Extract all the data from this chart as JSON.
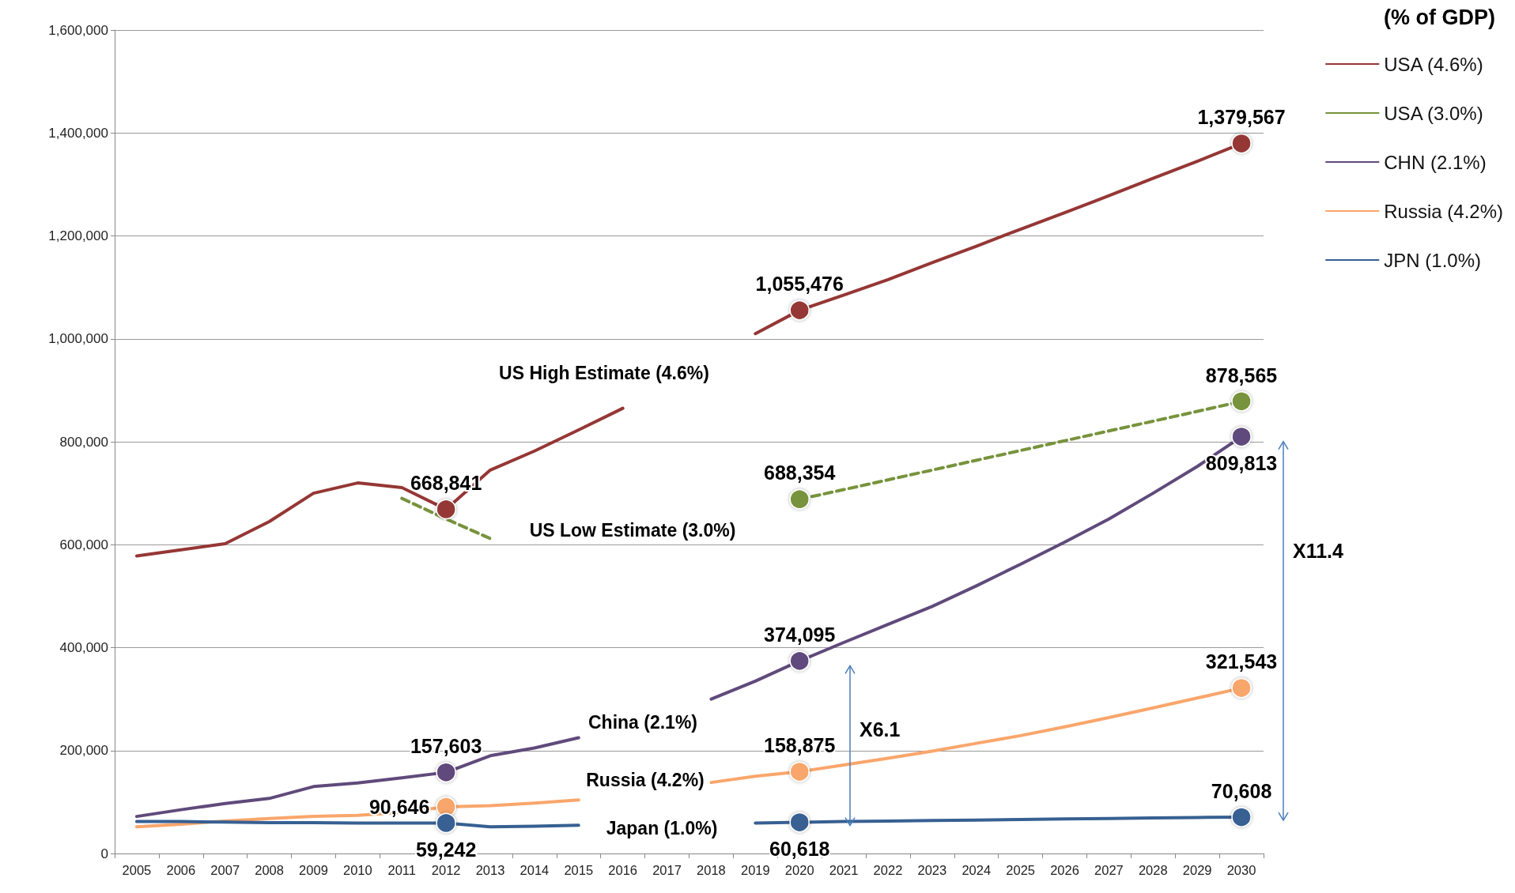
{
  "chart_data": {
    "type": "line",
    "legend_title": "(% of GDP)",
    "legend": "top right",
    "grid": "y",
    "line_style": "solid",
    "categories": [
      "2005",
      "2006",
      "2007",
      "2008",
      "2009",
      "2010",
      "2011",
      "2012",
      "2013",
      "2014",
      "2015",
      "2016",
      "2017",
      "2018",
      "2019",
      "2020",
      "2021",
      "2022",
      "2023",
      "2024",
      "2025",
      "2026",
      "2027",
      "2028",
      "2029",
      "2030"
    ],
    "ylim": [
      0,
      1600000
    ],
    "yticks": [
      {
        "value": 0,
        "label": "0"
      },
      {
        "value": 200000,
        "label": "200,000"
      },
      {
        "value": 400000,
        "label": "400,000"
      },
      {
        "value": 600000,
        "label": "600,000"
      },
      {
        "value": 800000,
        "label": "800,000"
      },
      {
        "value": 1000000,
        "label": "1,000,000"
      },
      {
        "value": 1200000,
        "label": "1,200,000"
      },
      {
        "value": 1400000,
        "label": "1,400,000"
      },
      {
        "value": 1600000,
        "label": "1,600,000"
      }
    ],
    "series": [
      {
        "name": "USA (4.6%)",
        "color": "#953735",
        "values": [
          578000,
          590000,
          602000,
          645000,
          700000,
          720000,
          711000,
          668841,
          745000,
          782000,
          823000,
          865000,
          null,
          null,
          1010000,
          1055476,
          1085000,
          1115000,
          1148000,
          1180000,
          1213000,
          1245000,
          1278000,
          1312000,
          1345000,
          1379567
        ],
        "value_labels": [
          null,
          null,
          null,
          null,
          null,
          null,
          null,
          "668,841",
          null,
          null,
          null,
          null,
          null,
          null,
          null,
          "1,055,476",
          null,
          null,
          null,
          null,
          null,
          null,
          null,
          null,
          null,
          "1,379,567"
        ]
      },
      {
        "name": "USA (3.0%)",
        "color": "#77933c",
        "line_style": "dashed",
        "values": [
          null,
          null,
          null,
          null,
          null,
          null,
          690000,
          650000,
          612000,
          null,
          null,
          null,
          null,
          null,
          null,
          688354,
          707000,
          726000,
          745000,
          764000,
          783000,
          802000,
          821000,
          840000,
          859000,
          878565
        ],
        "value_labels": [
          null,
          null,
          null,
          null,
          null,
          null,
          null,
          null,
          null,
          null,
          null,
          null,
          null,
          null,
          null,
          "688,354",
          null,
          null,
          null,
          null,
          null,
          null,
          null,
          null,
          null,
          "878,565"
        ]
      },
      {
        "name": "CHN (2.1%)",
        "color": "#604a7b",
        "values": [
          72000,
          85000,
          97000,
          107000,
          130000,
          137000,
          147000,
          157603,
          190000,
          205000,
          225000,
          null,
          null,
          300000,
          335000,
          374095,
          410000,
          445000,
          480000,
          520000,
          562000,
          605000,
          650000,
          700000,
          752000,
          809813
        ],
        "value_labels": [
          null,
          null,
          null,
          null,
          null,
          null,
          null,
          "157,603",
          null,
          null,
          null,
          null,
          null,
          null,
          null,
          "374,095",
          null,
          null,
          null,
          null,
          null,
          null,
          null,
          null,
          null,
          "809,813"
        ]
      },
      {
        "name": "Russia (4.2%)",
        "color": "#f9a66c",
        "values": [
          52000,
          57000,
          63000,
          68000,
          72000,
          74000,
          80000,
          90646,
          93000,
          98000,
          104000,
          null,
          null,
          138000,
          150000,
          158875,
          172000,
          185000,
          199000,
          214000,
          229000,
          246000,
          264000,
          283000,
          302000,
          321543
        ],
        "value_labels": [
          null,
          null,
          null,
          null,
          null,
          null,
          null,
          "90,646",
          null,
          null,
          null,
          null,
          null,
          null,
          null,
          "158,875",
          null,
          null,
          null,
          null,
          null,
          null,
          null,
          null,
          null,
          "321,543"
        ]
      },
      {
        "name": "JPN (1.0%)",
        "color": "#376092",
        "values": [
          62000,
          62000,
          61000,
          60000,
          60000,
          59000,
          59000,
          59242,
          52000,
          53000,
          55000,
          null,
          null,
          null,
          59000,
          60618,
          62000,
          63000,
          64000,
          65000,
          66000,
          67000,
          68000,
          69000,
          70000,
          70608
        ],
        "value_labels": [
          null,
          null,
          null,
          null,
          null,
          null,
          null,
          "59,242",
          null,
          null,
          null,
          null,
          null,
          null,
          null,
          "60,618",
          null,
          null,
          null,
          null,
          null,
          null,
          null,
          null,
          null,
          "70,608"
        ]
      }
    ],
    "annotations": [
      "US High Estimate (4.6%)",
      "US Low Estimate (3.0%)",
      "China (2.1%)",
      "Russia (4.2%)",
      "Japan (1.0%)",
      "X6.1",
      "X11.4"
    ]
  }
}
